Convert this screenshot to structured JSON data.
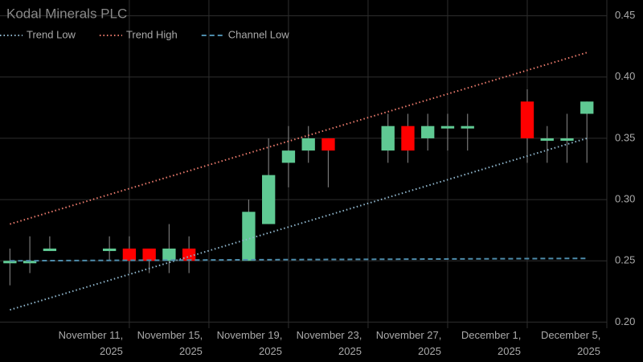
{
  "chart_data": {
    "type": "candlestick",
    "title": "Kodal Minerals PLC",
    "x": [
      "2025-11-05",
      "2025-11-06",
      "2025-11-07",
      "2025-11-10",
      "2025-11-11",
      "2025-11-12",
      "2025-11-13",
      "2025-11-14",
      "2025-11-17",
      "2025-11-18",
      "2025-11-19",
      "2025-11-20",
      "2025-11-21",
      "2025-11-24",
      "2025-11-25",
      "2025-11-26",
      "2025-11-27",
      "2025-11-28",
      "2025-12-01",
      "2025-12-02",
      "2025-12-03",
      "2025-12-04"
    ],
    "open": [
      0.248,
      0.248,
      0.258,
      0.258,
      0.26,
      0.26,
      0.25,
      0.26,
      0.25,
      0.28,
      0.33,
      0.34,
      0.35,
      0.34,
      0.36,
      0.35,
      0.358,
      0.358,
      0.38,
      0.348,
      0.348,
      0.37
    ],
    "high": [
      0.26,
      0.27,
      0.27,
      0.27,
      0.27,
      0.26,
      0.28,
      0.27,
      0.3,
      0.35,
      0.36,
      0.36,
      0.35,
      0.37,
      0.37,
      0.37,
      0.37,
      0.37,
      0.39,
      0.36,
      0.37,
      0.38
    ],
    "low": [
      0.23,
      0.24,
      0.258,
      0.25,
      0.24,
      0.24,
      0.24,
      0.24,
      0.25,
      0.28,
      0.31,
      0.33,
      0.31,
      0.33,
      0.33,
      0.34,
      0.34,
      0.34,
      0.33,
      0.33,
      0.33,
      0.33
    ],
    "close": [
      0.25,
      0.25,
      0.26,
      0.26,
      0.25,
      0.25,
      0.26,
      0.25,
      0.29,
      0.32,
      0.34,
      0.35,
      0.34,
      0.36,
      0.34,
      0.36,
      0.36,
      0.36,
      0.35,
      0.35,
      0.35,
      0.38
    ],
    "increasing_color": "#5fc993",
    "decreasing_color": "#ff0000",
    "lines": [
      {
        "name": "Trend Low",
        "color": "#8fb6cc",
        "dash": "dot",
        "x": [
          "2025-11-05",
          "2025-12-04"
        ],
        "values": [
          0.21,
          0.35
        ]
      },
      {
        "name": "Trend High",
        "color": "#e8796b",
        "dash": "dot",
        "x": [
          "2025-11-05",
          "2025-12-04"
        ],
        "values": [
          0.28,
          0.42
        ]
      },
      {
        "name": "Channel Low",
        "color": "#4d8cab",
        "dash": "dash",
        "x": [
          "2025-11-05",
          "2025-12-04"
        ],
        "values": [
          0.25,
          0.252
        ]
      }
    ],
    "xlim": [
      "2025-11-04T12:00",
      "2025-12-05T00:00"
    ],
    "xticks": [
      {
        "value": "2025-11-11",
        "label": "November 11, 2025"
      },
      {
        "value": "2025-11-15",
        "label": "November 15, 2025"
      },
      {
        "value": "2025-11-19",
        "label": "November 19, 2025"
      },
      {
        "value": "2025-11-23",
        "label": "November 23, 2025"
      },
      {
        "value": "2025-11-27",
        "label": "November 27, 2025"
      },
      {
        "value": "2025-12-01",
        "label": "December 1, 2025"
      },
      {
        "value": "2025-12-05",
        "label": "December 5, 2025"
      }
    ],
    "ylim": [
      0.195,
      0.455
    ],
    "yticks": [
      {
        "value": 0.2,
        "label": "0.20"
      },
      0.25,
      {
        "value": 0.3,
        "label": "0.30"
      },
      0.35,
      {
        "value": 0.4,
        "label": "0.40"
      },
      0.45
    ],
    "grid": true,
    "legend": "top-left"
  }
}
